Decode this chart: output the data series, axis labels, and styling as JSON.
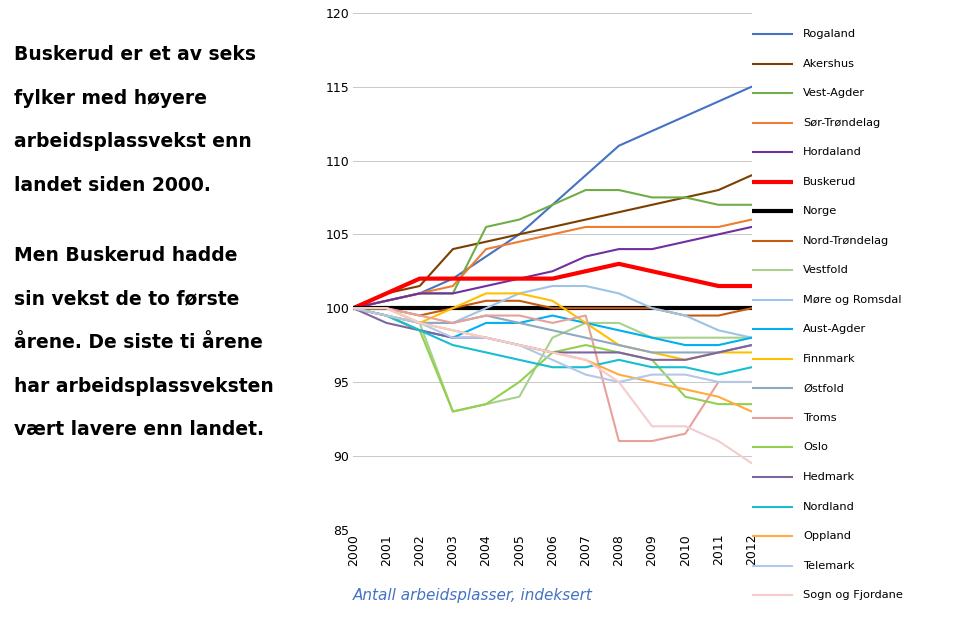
{
  "years": [
    2000,
    2001,
    2002,
    2003,
    2004,
    2005,
    2006,
    2007,
    2008,
    2009,
    2010,
    2011,
    2012
  ],
  "series": {
    "Rogaland": [
      100,
      100.5,
      101,
      102,
      103.5,
      105,
      107,
      109,
      111,
      112,
      113,
      114,
      115
    ],
    "Akershus": [
      100,
      101,
      101.5,
      104,
      104.5,
      105,
      105.5,
      106,
      106.5,
      107,
      107.5,
      108,
      109
    ],
    "Vest-Agder": [
      100,
      100.5,
      101,
      101,
      105.5,
      106,
      107,
      108,
      108,
      107.5,
      107.5,
      107,
      107
    ],
    "Sør-Trøndelag": [
      100,
      100.5,
      101,
      101.5,
      104,
      104.5,
      105,
      105.5,
      105.5,
      105.5,
      105.5,
      105.5,
      106
    ],
    "Hordaland": [
      100,
      100.5,
      101,
      101,
      101.5,
      102,
      102.5,
      103.5,
      104,
      104,
      104.5,
      105,
      105.5
    ],
    "Buskerud": [
      100,
      101,
      102,
      102,
      102,
      102,
      102,
      102.5,
      103,
      102.5,
      102,
      101.5,
      101.5
    ],
    "Norge": [
      100,
      100,
      100,
      100,
      100,
      100,
      100,
      100,
      100,
      100,
      100,
      100,
      100
    ],
    "Nord-Trøndelag": [
      100,
      100,
      99.5,
      100,
      100.5,
      100.5,
      100,
      100,
      100,
      100,
      99.5,
      99.5,
      100
    ],
    "Vestfold": [
      100,
      99.5,
      99,
      93,
      93.5,
      94,
      98,
      99,
      99,
      98,
      98,
      98,
      98
    ],
    "Møre og Romsdal": [
      100,
      100,
      99,
      99,
      100,
      101,
      101.5,
      101.5,
      101,
      100,
      99.5,
      98.5,
      98
    ],
    "Aust-Agder": [
      100,
      99.5,
      98.5,
      98,
      99,
      99,
      99.5,
      99,
      98.5,
      98,
      97.5,
      97.5,
      98
    ],
    "Finnmark": [
      100,
      100,
      99,
      100,
      101,
      101,
      100.5,
      99,
      97.5,
      97,
      96.5,
      97,
      97
    ],
    "Østfold": [
      100,
      99.5,
      99,
      99,
      99.5,
      99,
      98.5,
      98,
      97.5,
      97,
      97,
      97,
      97.5
    ],
    "Troms": [
      100,
      100,
      99.5,
      99,
      99.5,
      99.5,
      99,
      99.5,
      91,
      91,
      91.5,
      95,
      95
    ],
    "Oslo": [
      100,
      99.5,
      98.5,
      93,
      93.5,
      95,
      97,
      97.5,
      97,
      96.5,
      94,
      93.5,
      93.5
    ],
    "Hedmark": [
      100,
      99,
      98.5,
      98,
      98,
      97.5,
      97,
      97,
      97,
      96.5,
      96.5,
      97,
      97.5
    ],
    "Nordland": [
      100,
      99.5,
      98.5,
      97.5,
      97,
      96.5,
      96,
      96,
      96.5,
      96,
      96,
      95.5,
      96
    ],
    "Oppland": [
      100,
      99.5,
      99,
      98.5,
      98,
      97.5,
      97,
      96.5,
      95.5,
      95,
      94.5,
      94,
      93
    ],
    "Telemark": [
      100,
      99.5,
      99,
      98,
      98,
      97.5,
      96.5,
      95.5,
      95,
      95.5,
      95.5,
      95,
      95
    ],
    "Sogn og Fjordane": [
      100,
      100,
      99,
      98.5,
      98,
      97.5,
      97,
      96.5,
      95,
      92,
      92,
      91,
      89.5
    ]
  },
  "colors": {
    "Rogaland": "#4472C4",
    "Akershus": "#7B3F00",
    "Vest-Agder": "#70AD47",
    "Sør-Trøndelag": "#ED7D31",
    "Hordaland": "#7030A0",
    "Buskerud": "#FF0000",
    "Norge": "#000000",
    "Nord-Trøndelag": "#C55A11",
    "Vestfold": "#A9D18E",
    "Møre og Romsdal": "#9DC3E6",
    "Aust-Agder": "#00B0F0",
    "Finnmark": "#FFC000",
    "Østfold": "#8EA9C1",
    "Troms": "#E8A09A",
    "Oslo": "#92D050",
    "Hedmark": "#8064A2",
    "Nordland": "#17BECF",
    "Oppland": "#FFAB40",
    "Telemark": "#B4C7E7",
    "Sogn og Fjordane": "#F4CCCC"
  },
  "linewidths": {
    "Rogaland": 1.5,
    "Akershus": 1.5,
    "Vest-Agder": 1.5,
    "Sør-Trøndelag": 1.5,
    "Hordaland": 1.5,
    "Buskerud": 3.0,
    "Norge": 3.0,
    "Nord-Trøndelag": 1.5,
    "Vestfold": 1.5,
    "Møre og Romsdal": 1.5,
    "Aust-Agder": 1.5,
    "Finnmark": 1.5,
    "Østfold": 1.5,
    "Troms": 1.5,
    "Oslo": 1.5,
    "Hedmark": 1.5,
    "Nordland": 1.5,
    "Oppland": 1.5,
    "Telemark": 1.5,
    "Sogn og Fjordane": 1.5
  },
  "legend_order": [
    "Rogaland",
    "Akershus",
    "Vest-Agder",
    "Sør-Trøndelag",
    "Hordaland",
    "Buskerud",
    "Norge",
    "Nord-Trøndelag",
    "Vestfold",
    "Møre og Romsdal",
    "Aust-Agder",
    "Finnmark",
    "Østfold",
    "Troms",
    "Oslo",
    "Hedmark",
    "Nordland",
    "Oppland",
    "Telemark",
    "Sogn og Fjordane"
  ],
  "ylim": [
    85,
    120
  ],
  "yticks": [
    85,
    90,
    95,
    100,
    105,
    110,
    115,
    120
  ],
  "xlim": [
    2000,
    2012
  ],
  "caption": "Antall arbeidsplasser, indeksert",
  "left_text": [
    [
      "Buskerud er et av seks",
      "fylker med høyere",
      "arbeidsplassvekst enn",
      "landet siden 2000."
    ],
    [
      "Men Buskerud hadde",
      "sin vekst de to første",
      "årene. De siste ti årene",
      "har arbeidsplassveksten",
      "vært lavere enn landet."
    ]
  ],
  "caption_color": "#4472C4"
}
